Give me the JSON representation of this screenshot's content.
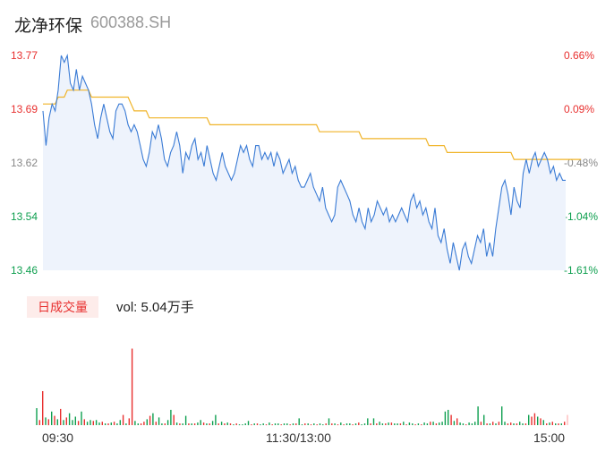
{
  "header": {
    "name": "龙净环保",
    "code": "600388.SH"
  },
  "price_axis": [
    "13.77",
    "13.69",
    "13.62",
    "13.54",
    "13.46"
  ],
  "pct_axis": [
    "0.66%",
    "0.09%",
    "-0.48%",
    "-1.04%",
    "-1.61%"
  ],
  "volume": {
    "tab_label": "日成交量",
    "vol_text": "vol: 5.04万手"
  },
  "time_axis": [
    "09:30",
    "11:30/13:00",
    "15:00"
  ],
  "colors": {
    "price": "#3a7bd5",
    "avg": "#f0b429",
    "up": "#e8302f",
    "down": "#0e9f4f",
    "fill": "#eef3fc"
  },
  "chart_data": [
    {
      "type": "line",
      "title": "",
      "ylim": [
        13.46,
        13.77
      ],
      "grid": false,
      "series": [
        {
          "values": [
            13.69,
            13.64,
            13.68,
            13.7,
            13.69,
            13.72,
            13.77,
            13.76,
            13.77,
            13.73,
            13.72,
            13.75,
            13.72,
            13.74,
            13.73,
            13.72,
            13.7,
            13.67,
            13.65,
            13.68,
            13.7,
            13.68,
            13.66,
            13.65,
            13.69,
            13.7,
            13.7,
            13.69,
            13.67,
            13.66,
            13.67,
            13.66,
            13.64,
            13.62,
            13.61,
            13.63,
            13.66,
            13.65,
            13.67,
            13.65,
            13.62,
            13.61,
            13.63,
            13.64,
            13.66,
            13.64,
            13.6,
            13.63,
            13.62,
            13.64,
            13.65,
            13.62,
            13.63,
            13.61,
            13.64,
            13.62,
            13.6,
            13.59,
            13.61,
            13.63,
            13.61,
            13.6,
            13.59,
            13.6,
            13.62,
            13.64,
            13.63,
            13.64,
            13.62,
            13.61,
            13.64,
            13.64,
            13.62,
            13.63,
            13.62,
            13.63,
            13.61,
            13.63,
            13.62,
            13.6,
            13.61,
            13.62,
            13.6,
            13.61,
            13.59,
            13.58,
            13.58,
            13.59,
            13.6,
            13.58,
            13.57,
            13.56,
            13.58,
            13.55,
            13.54,
            13.53,
            13.54,
            13.58,
            13.59,
            13.58,
            13.57,
            13.56,
            13.54,
            13.53,
            13.55,
            13.53,
            13.52,
            13.55,
            13.53,
            13.54,
            13.56,
            13.55,
            13.54,
            13.55,
            13.53,
            13.54,
            13.53,
            13.54,
            13.55,
            13.54,
            13.53,
            13.56,
            13.57,
            13.55,
            13.56,
            13.54,
            13.55,
            13.53,
            13.52,
            13.55,
            13.51,
            13.5,
            13.52,
            13.49,
            13.47,
            13.5,
            13.48,
            13.46,
            13.49,
            13.5,
            13.48,
            13.47,
            13.49,
            13.51,
            13.5,
            13.52,
            13.48,
            13.5,
            13.48,
            13.52,
            13.55,
            13.58,
            13.59,
            13.57,
            13.54,
            13.58,
            13.56,
            13.55,
            13.6,
            13.62,
            13.6,
            13.62,
            13.63,
            13.61,
            13.62,
            13.63,
            13.62,
            13.6,
            13.61,
            13.59,
            13.6,
            13.59,
            13.59
          ]
        },
        {
          "values": [
            13.7,
            13.7,
            13.7,
            13.7,
            13.7,
            13.71,
            13.71,
            13.71,
            13.72,
            13.72,
            13.72,
            13.72,
            13.72,
            13.72,
            13.72,
            13.72,
            13.71,
            13.71,
            13.71,
            13.71,
            13.71,
            13.71,
            13.71,
            13.71,
            13.71,
            13.71,
            13.71,
            13.71,
            13.71,
            13.7,
            13.69,
            13.69,
            13.69,
            13.69,
            13.69,
            13.68,
            13.68,
            13.68,
            13.68,
            13.68,
            13.68,
            13.68,
            13.68,
            13.68,
            13.68,
            13.68,
            13.68,
            13.68,
            13.68,
            13.68,
            13.68,
            13.68,
            13.68,
            13.68,
            13.68,
            13.67,
            13.67,
            13.67,
            13.67,
            13.67,
            13.67,
            13.67,
            13.67,
            13.67,
            13.67,
            13.67,
            13.67,
            13.67,
            13.67,
            13.67,
            13.67,
            13.67,
            13.67,
            13.67,
            13.67,
            13.67,
            13.67,
            13.67,
            13.67,
            13.67,
            13.67,
            13.67,
            13.67,
            13.67,
            13.67,
            13.67,
            13.67,
            13.67,
            13.67,
            13.67,
            13.67,
            13.66,
            13.66,
            13.66,
            13.66,
            13.66,
            13.66,
            13.66,
            13.66,
            13.66,
            13.66,
            13.66,
            13.66,
            13.66,
            13.66,
            13.65,
            13.65,
            13.65,
            13.65,
            13.65,
            13.65,
            13.65,
            13.65,
            13.65,
            13.65,
            13.65,
            13.65,
            13.65,
            13.65,
            13.65,
            13.65,
            13.65,
            13.65,
            13.65,
            13.65,
            13.65,
            13.65,
            13.64,
            13.64,
            13.64,
            13.64,
            13.64,
            13.64,
            13.63,
            13.63,
            13.63,
            13.63,
            13.63,
            13.63,
            13.63,
            13.63,
            13.63,
            13.63,
            13.63,
            13.63,
            13.63,
            13.63,
            13.63,
            13.63,
            13.63,
            13.63,
            13.63,
            13.63,
            13.63,
            13.63,
            13.62,
            13.62,
            13.62,
            13.62,
            13.62,
            13.62,
            13.62,
            13.62,
            13.62,
            13.62,
            13.62,
            13.62,
            13.62,
            13.62,
            13.62,
            13.62,
            13.62,
            13.62,
            13.62,
            13.62,
            13.62,
            13.62,
            13.62
          ]
        }
      ]
    },
    {
      "type": "bar",
      "title": "",
      "ylim": [
        0,
        100
      ],
      "series": [
        {
          "values": [
            20,
            6,
            40,
            9,
            7,
            16,
            11,
            7,
            19,
            6,
            9,
            14,
            6,
            10,
            5,
            16,
            7,
            4,
            6,
            5,
            6,
            3,
            4,
            2,
            2,
            3,
            4,
            2,
            6,
            12,
            2,
            8,
            90,
            5,
            2,
            2,
            4,
            7,
            11,
            14,
            4,
            9,
            2,
            2,
            6,
            18,
            12,
            3,
            2,
            2,
            11,
            2,
            2,
            2,
            3,
            6,
            3,
            2,
            2,
            5,
            12,
            2,
            4,
            2,
            3,
            2,
            1,
            2,
            1,
            1,
            2,
            5,
            1,
            2,
            2,
            1,
            2,
            1,
            3,
            1,
            2,
            2,
            1,
            2,
            2,
            1,
            2,
            2,
            8,
            1,
            2,
            2,
            1,
            2,
            1,
            2,
            1,
            2,
            8,
            2,
            2,
            1,
            3,
            1,
            2,
            2,
            1,
            2,
            3,
            1,
            2,
            8,
            2,
            8,
            2,
            4,
            2,
            2,
            3,
            3,
            2,
            2,
            2,
            4,
            1,
            3,
            2,
            1,
            2,
            1,
            3,
            2,
            4,
            4,
            2,
            3,
            4,
            16,
            18,
            12,
            5,
            8,
            3,
            2,
            1,
            3,
            2,
            4,
            22,
            4,
            12,
            2,
            2,
            4,
            2,
            4,
            22,
            4,
            2,
            3,
            2,
            2,
            4,
            2,
            2,
            12,
            10,
            14,
            10,
            8,
            6,
            2,
            3,
            4,
            2,
            2,
            2,
            4,
            12
          ]
        },
        {
          "colors": [
            "#0e9f4f",
            "#e8302f",
            "#e8302f",
            "#0e9f4f",
            "#e8302f",
            "#0e9f4f",
            "#e8302f",
            "#0e9f4f",
            "#e8302f",
            "#0e9f4f",
            "#e8302f",
            "#0e9f4f",
            "#0e9f4f",
            "#0e9f4f",
            "#e8302f",
            "#0e9f4f",
            "#e8302f",
            "#0e9f4f",
            "#0e9f4f",
            "#e8302f",
            "#0e9f4f",
            "#0e9f4f",
            "#e8302f",
            "#0e9f4f",
            "#e8302f",
            "#0e9f4f",
            "#e8302f",
            "#0e9f4f",
            "#0e9f4f",
            "#e8302f",
            "#0e9f4f",
            "#e8302f",
            "#e8302f",
            "#0e9f4f",
            "#0e9f4f",
            "#e8302f",
            "#e8302f",
            "#0e9f4f",
            "#e8302f",
            "#0e9f4f",
            "#e8302f",
            "#0e9f4f",
            "#0e9f4f",
            "#e8302f",
            "#0e9f4f",
            "#0e9f4f",
            "#e8302f",
            "#0e9f4f",
            "#e8302f",
            "#0e9f4f",
            "#0e9f4f",
            "#e8302f",
            "#0e9f4f",
            "#e8302f",
            "#0e9f4f",
            "#0e9f4f",
            "#e8302f",
            "#0e9f4f",
            "#e8302f",
            "#0e9f4f",
            "#0e9f4f",
            "#e8302f",
            "#0e9f4f",
            "#e8302f",
            "#0e9f4f",
            "#e8302f",
            "#0e9f4f",
            "#e8302f",
            "#0e9f4f",
            "#0e9f4f",
            "#0e9f4f",
            "#0e9f4f",
            "#e8302f",
            "#0e9f4f",
            "#e8302f",
            "#0e9f4f",
            "#0e9f4f",
            "#e8302f",
            "#0e9f4f",
            "#e8302f",
            "#0e9f4f",
            "#0e9f4f",
            "#e8302f",
            "#0e9f4f",
            "#0e9f4f",
            "#e8302f",
            "#0e9f4f",
            "#e8302f",
            "#0e9f4f",
            "#0e9f4f",
            "#e8302f",
            "#0e9f4f",
            "#e8302f",
            "#0e9f4f",
            "#e8302f",
            "#0e9f4f",
            "#0e9f4f",
            "#e8302f",
            "#0e9f4f",
            "#e8302f",
            "#0e9f4f",
            "#e8302f",
            "#0e9f4f",
            "#e8302f",
            "#0e9f4f",
            "#0e9f4f",
            "#e8302f",
            "#0e9f4f",
            "#e8302f",
            "#0e9f4f",
            "#0e9f4f",
            "#0e9f4f",
            "#e8302f",
            "#0e9f4f",
            "#e8302f",
            "#0e9f4f",
            "#0e9f4f",
            "#e8302f",
            "#0e9f4f",
            "#e8302f",
            "#0e9f4f",
            "#0e9f4f",
            "#e8302f",
            "#0e9f4f",
            "#e8302f",
            "#0e9f4f",
            "#0e9f4f",
            "#e8302f",
            "#0e9f4f",
            "#e8302f",
            "#0e9f4f",
            "#0e9f4f",
            "#e8302f",
            "#0e9f4f",
            "#e8302f",
            "#0e9f4f",
            "#0e9f4f",
            "#0e9f4f",
            "#0e9f4f",
            "#e8302f",
            "#0e9f4f",
            "#e8302f",
            "#0e9f4f",
            "#0e9f4f",
            "#e8302f",
            "#0e9f4f",
            "#0e9f4f",
            "#0e9f4f",
            "#0e9f4f",
            "#e8302f",
            "#0e9f4f",
            "#e8302f",
            "#0e9f4f",
            "#e8302f",
            "#0e9f4f",
            "#e8302f",
            "#0e9f4f",
            "#0e9f4f",
            "#e8302f",
            "#e8302f",
            "#0e9f4f",
            "#e8302f",
            "#0e9f4f",
            "#0e9f4f",
            "#e8302f",
            "#0e9f4f",
            "#e8302f",
            "#e8302f",
            "#0e9f4f",
            "#e8302f",
            "#0e9f4f",
            "#e8302f",
            "#0e9f4f",
            "#e8302f",
            "#0e9f4f",
            "#e8302f",
            "#0e9f4f",
            "#e8302f",
            "#fbb"
          ]
        }
      ]
    }
  ]
}
